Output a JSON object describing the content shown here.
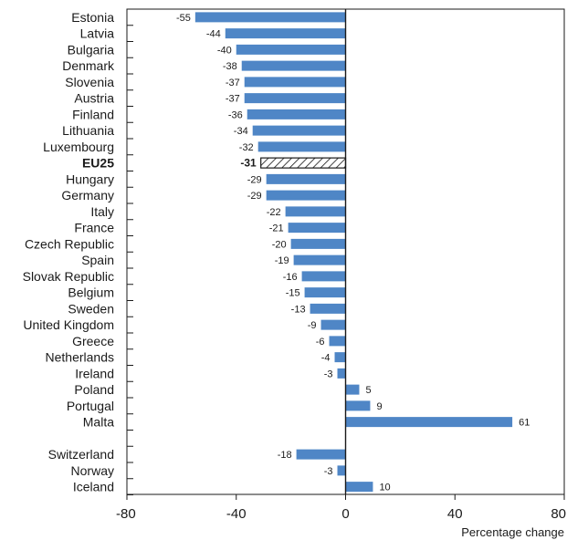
{
  "chart_data": {
    "type": "bar",
    "orientation": "horizontal",
    "title": "",
    "xlabel": "Percentage change",
    "ylabel": "",
    "xlim": [
      -80,
      80
    ],
    "xticks": [
      -80,
      -40,
      0,
      40,
      80
    ],
    "grid": false,
    "bar_color": "#4f86c6",
    "highlight_category": "EU25",
    "categories": [
      "Estonia",
      "Latvia",
      "Bulgaria",
      "Denmark",
      "Slovenia",
      "Austria",
      "Finland",
      "Lithuania",
      "Luxembourg",
      "EU25",
      "Hungary",
      "Germany",
      "Italy",
      "France",
      "Czech Republic",
      "Spain",
      "Slovak Republic",
      "Belgium",
      "Sweden",
      "United Kingdom",
      "Greece",
      "Netherlands",
      "Ireland",
      "Poland",
      "Portugal",
      "Malta",
      "",
      "Switzerland",
      "Norway",
      "Iceland"
    ],
    "values": [
      -55,
      -44,
      -40,
      -38,
      -37,
      -37,
      -36,
      -34,
      -32,
      -31,
      -29,
      -29,
      -22,
      -21,
      -20,
      -19,
      -16,
      -15,
      -13,
      -9,
      -6,
      -4,
      -3,
      5,
      9,
      61,
      null,
      -18,
      -3,
      10
    ],
    "data_labels": [
      "-55",
      "-44",
      "-40",
      "-38",
      "-37",
      "-37",
      "-36",
      "-34",
      "-32",
      "-31",
      "-29",
      "-29",
      "-22",
      "-21",
      "-20",
      "-19",
      "-16",
      "-15",
      "-13",
      "-9",
      "-6",
      "-4",
      "-3",
      "5",
      "9",
      "61",
      "",
      "-18",
      "-3",
      "10"
    ]
  }
}
